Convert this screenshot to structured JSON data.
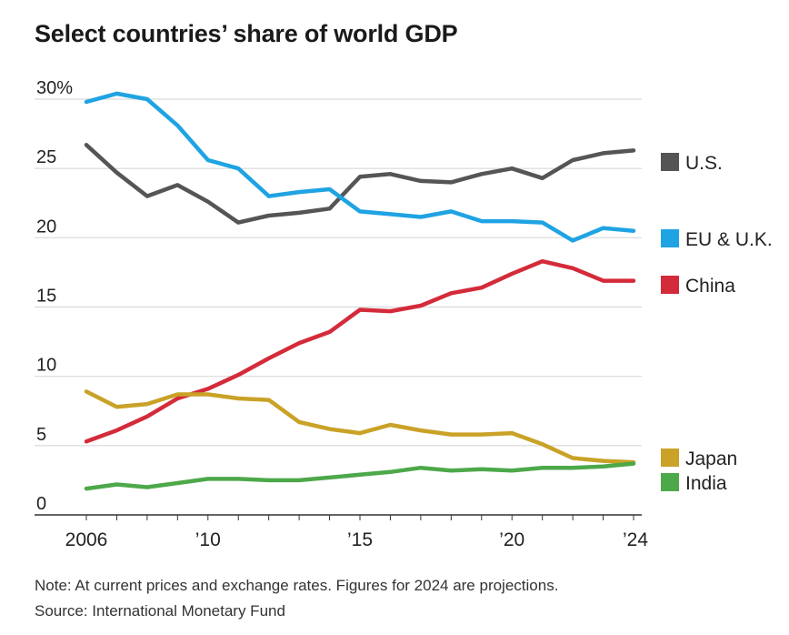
{
  "header": {
    "title": "Select countries’ share of world GDP"
  },
  "footer": {
    "note": "Note: At current prices and exchange rates. Figures for 2024 are projections.",
    "source": "Source: International Monetary Fund"
  },
  "chart_data": {
    "type": "line",
    "title": "Select countries’ share of world GDP",
    "xlabel": "",
    "ylabel": "",
    "x": [
      2006,
      2007,
      2008,
      2009,
      2010,
      2011,
      2012,
      2013,
      2014,
      2015,
      2016,
      2017,
      2018,
      2019,
      2020,
      2021,
      2022,
      2023,
      2024
    ],
    "xlim": [
      2006,
      2024
    ],
    "ylim": [
      0,
      30
    ],
    "x_ticks": [
      {
        "value": 2006,
        "label": "2006"
      },
      {
        "value": 2010,
        "label": "’10"
      },
      {
        "value": 2015,
        "label": "’15"
      },
      {
        "value": 2020,
        "label": "’20"
      },
      {
        "value": 2024,
        "label": "’24"
      }
    ],
    "y_ticks": [
      {
        "value": 0,
        "label": "0"
      },
      {
        "value": 5,
        "label": "5"
      },
      {
        "value": 10,
        "label": "10"
      },
      {
        "value": 15,
        "label": "15"
      },
      {
        "value": 20,
        "label": "20"
      },
      {
        "value": 25,
        "label": "25"
      },
      {
        "value": 30,
        "label": "30%"
      }
    ],
    "grid": "horizontal",
    "legend": "right, labels at line ends",
    "series": [
      {
        "name": "U.S.",
        "color": "#555555",
        "values": [
          26.7,
          24.7,
          23.0,
          23.8,
          22.6,
          21.1,
          21.6,
          21.8,
          22.1,
          24.4,
          24.6,
          24.1,
          24.0,
          24.6,
          25.0,
          24.3,
          25.6,
          26.1,
          26.3
        ]
      },
      {
        "name": "EU & U.K.",
        "color": "#1fa3e3",
        "values": [
          29.8,
          30.4,
          30.0,
          28.1,
          25.6,
          25.0,
          23.0,
          23.3,
          23.5,
          21.9,
          21.7,
          21.5,
          21.9,
          21.2,
          21.2,
          21.1,
          19.8,
          20.7,
          20.5
        ]
      },
      {
        "name": "China",
        "color": "#d42b3a",
        "values": [
          5.3,
          6.1,
          7.1,
          8.4,
          9.1,
          10.1,
          11.3,
          12.4,
          13.2,
          14.8,
          14.7,
          15.1,
          16.0,
          16.4,
          17.4,
          18.3,
          17.8,
          16.9,
          16.9
        ]
      },
      {
        "name": "Japan",
        "color": "#c9a227",
        "values": [
          8.9,
          7.8,
          8.0,
          8.7,
          8.7,
          8.4,
          8.3,
          6.7,
          6.2,
          5.9,
          6.5,
          6.1,
          5.8,
          5.8,
          5.9,
          5.1,
          4.1,
          3.9,
          3.8
        ]
      },
      {
        "name": "India",
        "color": "#4da84a",
        "values": [
          1.9,
          2.2,
          2.0,
          2.3,
          2.6,
          2.6,
          2.5,
          2.5,
          2.7,
          2.9,
          3.1,
          3.4,
          3.2,
          3.3,
          3.2,
          3.4,
          3.4,
          3.5,
          3.7
        ]
      }
    ]
  }
}
